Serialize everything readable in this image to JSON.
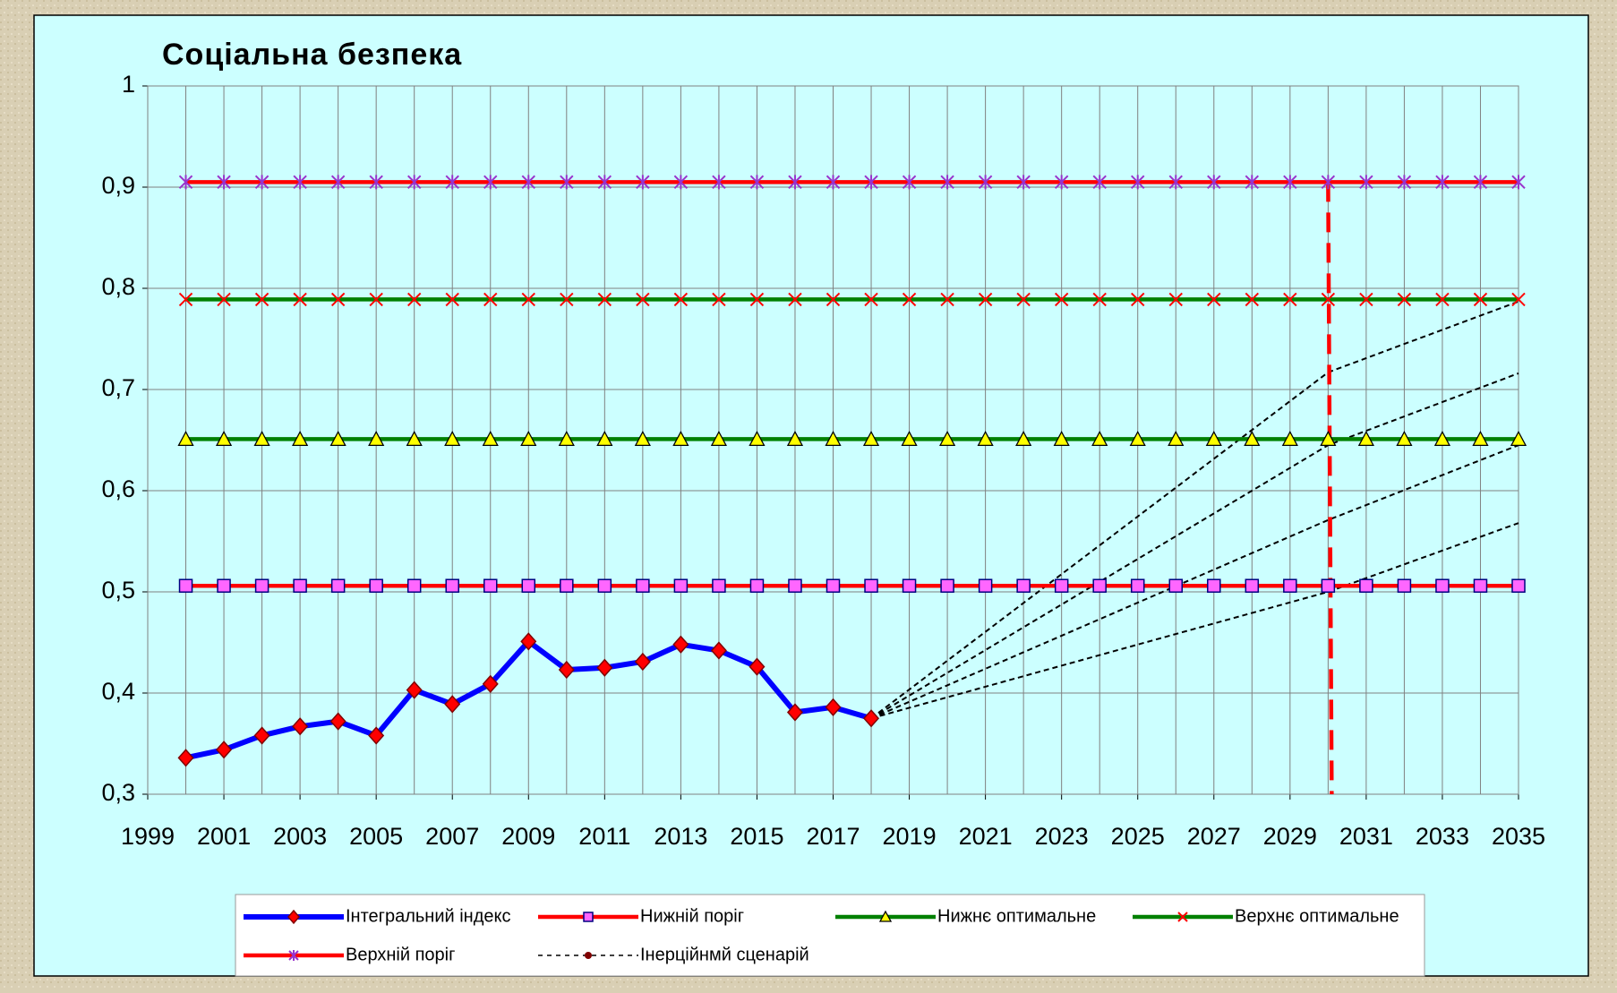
{
  "chart_data": {
    "type": "line",
    "title": "Соціальна безпека",
    "xlim": [
      1999,
      2035
    ],
    "xticks": [
      1999,
      2001,
      2003,
      2005,
      2007,
      2009,
      2011,
      2013,
      2015,
      2017,
      2019,
      2021,
      2023,
      2025,
      2027,
      2029,
      2031,
      2033,
      2035
    ],
    "x_grid_every": 1,
    "ylim": [
      0.3,
      1
    ],
    "yticks": [
      {
        "value": 0.3,
        "label": "0,3"
      },
      {
        "value": 0.4,
        "label": "0,4"
      },
      {
        "value": 0.5,
        "label": "0,5"
      },
      {
        "value": 0.6,
        "label": "0,6"
      },
      {
        "value": 0.7,
        "label": "0,7"
      },
      {
        "value": 0.8,
        "label": "0,8"
      },
      {
        "value": 0.9,
        "label": "0,9"
      },
      1
    ],
    "grid": true,
    "x": [
      2000,
      2001,
      2002,
      2003,
      2004,
      2005,
      2006,
      2007,
      2008,
      2009,
      2010,
      2011,
      2012,
      2013,
      2014,
      2015,
      2016,
      2017,
      2018,
      2019,
      2020,
      2021,
      2022,
      2023,
      2024,
      2025,
      2026,
      2027,
      2028,
      2029,
      2030,
      2031,
      2032,
      2033,
      2034,
      2035
    ],
    "series": [
      {
        "name": "Інтегральний індекс",
        "color": "#0000ff",
        "marker": "diamond",
        "marker_color": "#ff0000",
        "values": [
          0.336,
          0.344,
          0.358,
          0.367,
          0.372,
          0.358,
          0.403,
          0.389,
          0.409,
          0.451,
          0.423,
          0.425,
          0.431,
          0.448,
          0.442,
          0.426,
          0.381,
          0.386,
          0.375,
          null,
          null,
          null,
          null,
          null,
          null,
          null,
          null,
          null,
          null,
          null,
          null,
          null,
          null,
          null,
          null,
          null
        ]
      },
      {
        "name": "Нижній поріг",
        "color": "#ff0000",
        "marker": "square",
        "marker_color": "#ff66ff",
        "values": [
          0.506,
          0.506,
          0.506,
          0.506,
          0.506,
          0.506,
          0.506,
          0.506,
          0.506,
          0.506,
          0.506,
          0.506,
          0.506,
          0.506,
          0.506,
          0.506,
          0.506,
          0.506,
          0.506,
          0.506,
          0.506,
          0.506,
          0.506,
          0.506,
          0.506,
          0.506,
          0.506,
          0.506,
          0.506,
          0.506,
          0.506,
          0.506,
          0.506,
          0.506,
          0.506,
          0.506
        ]
      },
      {
        "name": "Нижнє оптимальне",
        "color": "#008000",
        "marker": "triangle",
        "marker_color": "#ffff00",
        "values": [
          0.651,
          0.651,
          0.651,
          0.651,
          0.651,
          0.651,
          0.651,
          0.651,
          0.651,
          0.651,
          0.651,
          0.651,
          0.651,
          0.651,
          0.651,
          0.651,
          0.651,
          0.651,
          0.651,
          0.651,
          0.651,
          0.651,
          0.651,
          0.651,
          0.651,
          0.651,
          0.651,
          0.651,
          0.651,
          0.651,
          0.651,
          0.651,
          0.651,
          0.651,
          0.651,
          0.651
        ]
      },
      {
        "name": "Верхнє оптимальне",
        "color": "#008000",
        "marker": "x",
        "marker_color": "#ff0000",
        "values": [
          0.789,
          0.789,
          0.789,
          0.789,
          0.789,
          0.789,
          0.789,
          0.789,
          0.789,
          0.789,
          0.789,
          0.789,
          0.789,
          0.789,
          0.789,
          0.789,
          0.789,
          0.789,
          0.789,
          0.789,
          0.789,
          0.789,
          0.789,
          0.789,
          0.789,
          0.789,
          0.789,
          0.789,
          0.789,
          0.789,
          0.789,
          0.789,
          0.789,
          0.789,
          0.789,
          0.789
        ]
      },
      {
        "name": "Верхній поріг",
        "color": "#ff0000",
        "marker": "asterisk",
        "marker_color": "#9933cc",
        "values": [
          0.905,
          0.905,
          0.905,
          0.905,
          0.905,
          0.905,
          0.905,
          0.905,
          0.905,
          0.905,
          0.905,
          0.905,
          0.905,
          0.905,
          0.905,
          0.905,
          0.905,
          0.905,
          0.905,
          0.905,
          0.905,
          0.905,
          0.905,
          0.905,
          0.905,
          0.905,
          0.905,
          0.905,
          0.905,
          0.905,
          0.905,
          0.905,
          0.905,
          0.905,
          0.905,
          0.905
        ]
      },
      {
        "name": "Інерційнмй сценарій",
        "color": "#000000",
        "marker": "dot",
        "marker_color": "#800000",
        "dashed": true,
        "x": [
          2018,
          2030,
          2035
        ],
        "lines": [
          [
            0.375,
            0.717,
            0.787
          ],
          [
            0.375,
            0.645,
            0.716
          ],
          [
            0.375,
            0.571,
            0.645
          ],
          [
            0.375,
            0.5,
            0.568
          ]
        ]
      }
    ],
    "vline": {
      "x": 2030,
      "color": "#ff0000"
    }
  }
}
